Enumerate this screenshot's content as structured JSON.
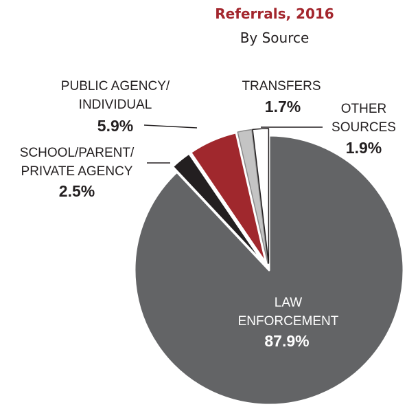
{
  "chart_data": {
    "type": "pie",
    "title": "Referrals, 2016",
    "subtitle": "By Source",
    "categories": [
      "LAW ENFORCEMENT",
      "SCHOOL/PARENT/ PRIVATE AGENCY",
      "PUBLIC AGENCY/ INDIVIDUAL",
      "TRANSFERS",
      "OTHER SOURCES"
    ],
    "values": [
      87.9,
      2.5,
      5.9,
      1.7,
      1.9
    ],
    "value_labels": [
      "87.9%",
      "2.5%",
      "5.9%",
      "1.7%",
      "1.9%"
    ],
    "colors": [
      "#636466",
      "#231f20",
      "#a0282d",
      "#c4c4c4",
      "#ffffff"
    ]
  }
}
